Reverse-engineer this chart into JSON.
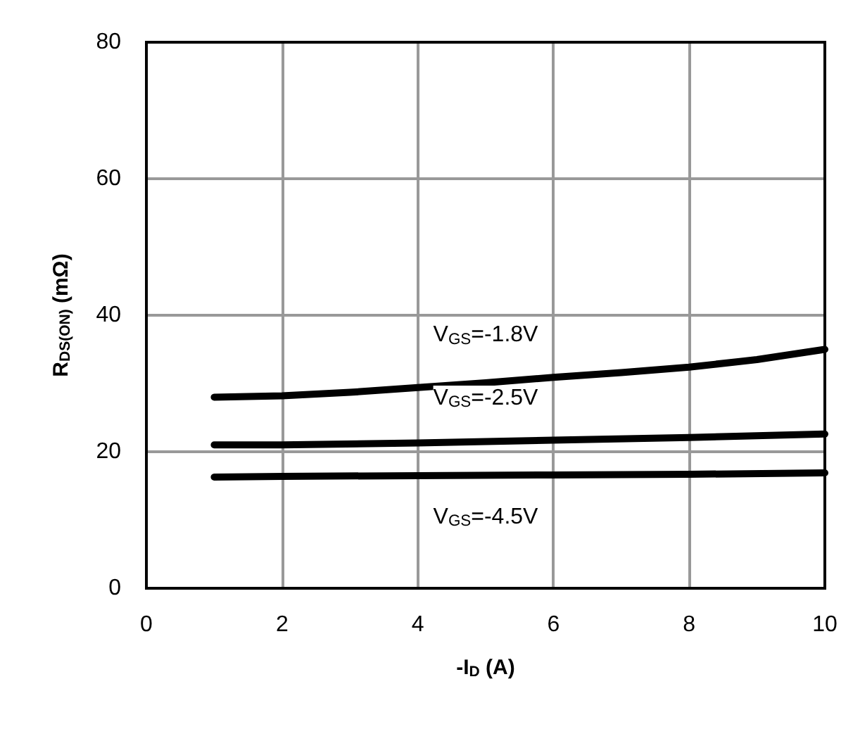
{
  "chart_data": {
    "type": "line",
    "xlabel": "-I$_{D}$ (A)",
    "ylabel": "R$_{DS(ON)}$ (mΩ)",
    "xlim": [
      0,
      10
    ],
    "xticks": [
      0,
      2,
      4,
      6,
      8,
      10
    ],
    "ylim": [
      0,
      80
    ],
    "yticks": [
      0,
      20,
      40,
      60,
      80
    ],
    "grid": true,
    "marker": "none",
    "line_style": "solid",
    "series": [
      {
        "color": "#000000",
        "x": [
          1,
          2,
          3,
          4,
          5,
          6,
          7,
          8,
          9,
          10
        ],
        "values": [
          28,
          28.2,
          28.7,
          29.4,
          30.1,
          30.9,
          31.6,
          32.4,
          33.5,
          35
        ]
      },
      {
        "color": "#000000",
        "x": [
          1,
          2,
          4,
          6,
          8,
          10
        ],
        "values": [
          21,
          21,
          21.3,
          21.7,
          22.1,
          22.6
        ]
      },
      {
        "color": "#000000",
        "x": [
          1,
          2,
          4,
          6,
          8,
          10
        ],
        "values": [
          16.3,
          16.4,
          16.5,
          16.6,
          16.7,
          16.9
        ]
      }
    ],
    "annotations": [
      "V$_{GS}$=-1.8V",
      "V$_{GS}$=-2.5V",
      "V$_{GS}$=-4.5V"
    ]
  }
}
